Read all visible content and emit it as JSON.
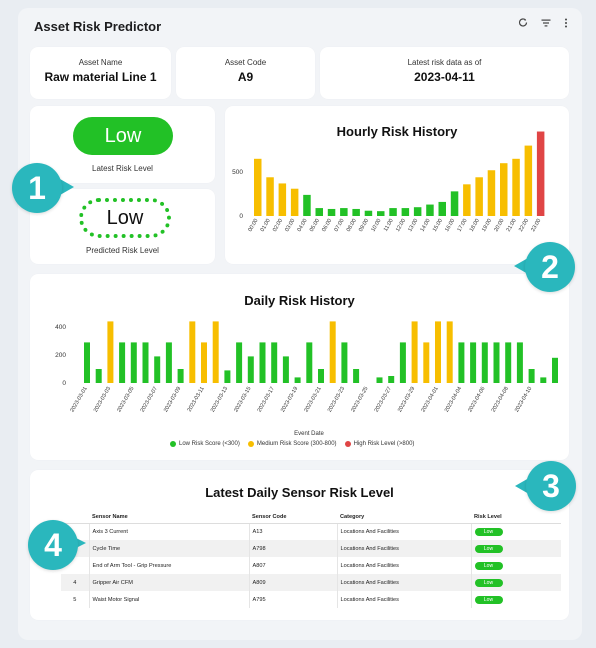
{
  "app": {
    "title": "Asset Risk Predictor"
  },
  "header_icons": [
    "refresh-icon",
    "filter-icon",
    "more-vertical-icon"
  ],
  "asset": {
    "name_label": "Asset Name",
    "name_value": "Raw material Line 1",
    "code_label": "Asset Code",
    "code_value": "A9",
    "date_label": "Latest risk data as of",
    "date_value": "2023-04-11"
  },
  "latest_risk": {
    "value": "Low",
    "label": "Latest Risk Level"
  },
  "predicted_risk": {
    "value": "Low",
    "label": "Predicted Risk Level"
  },
  "badges": [
    "1",
    "2",
    "3",
    "4"
  ],
  "colors": {
    "low": "#22c126",
    "medium": "#f7be00",
    "high": "#e04545",
    "badge": "#2ab7bd"
  },
  "hourly_chart": {
    "title": "Hourly Risk History",
    "y_ticks": [
      "0",
      "500"
    ],
    "ylim": [
      0,
      1000
    ],
    "categories": [
      "00:00",
      "01:00",
      "02:00",
      "03:00",
      "04:00",
      "05:00",
      "06:00",
      "07:00",
      "08:00",
      "09:00",
      "10:00",
      "11:00",
      "12:00",
      "13:00",
      "14:00",
      "15:00",
      "16:00",
      "17:00",
      "18:00",
      "19:00",
      "20:00",
      "21:00",
      "22:00",
      "23:00"
    ],
    "values": [
      650,
      440,
      370,
      310,
      240,
      90,
      80,
      90,
      80,
      60,
      55,
      90,
      90,
      100,
      130,
      160,
      280,
      360,
      440,
      520,
      600,
      650,
      800,
      960
    ],
    "levels": [
      "m",
      "m",
      "m",
      "m",
      "l",
      "l",
      "l",
      "l",
      "l",
      "l",
      "l",
      "l",
      "l",
      "l",
      "l",
      "l",
      "l",
      "m",
      "m",
      "m",
      "m",
      "m",
      "m",
      "h"
    ]
  },
  "daily_chart": {
    "title": "Daily Risk History",
    "xlabel": "Event Date",
    "y_ticks": [
      "0",
      "200",
      "400"
    ],
    "ylim": [
      0,
      450
    ],
    "tick_labels": [
      "2023-03-01",
      "2023-03-03",
      "2023-03-05",
      "2023-03-07",
      "2023-03-09",
      "2023-03-11",
      "2023-03-13",
      "2023-03-15",
      "2023-03-17",
      "2023-03-19",
      "2023-03-21",
      "2023-03-23",
      "2023-03-25",
      "2023-03-27",
      "2023-03-29",
      "2023-04-01",
      "2023-04-04",
      "2023-04-06",
      "2023-04-08",
      "2023-04-10"
    ],
    "values": [
      290,
      100,
      440,
      290,
      290,
      290,
      190,
      290,
      100,
      440,
      290,
      440,
      90,
      290,
      190,
      290,
      290,
      190,
      40,
      290,
      100,
      440,
      290,
      100,
      0,
      40,
      50,
      290,
      440,
      290,
      440,
      440,
      290,
      290,
      290,
      290,
      290,
      290,
      100,
      40,
      180
    ],
    "levels": [
      "l",
      "l",
      "m",
      "l",
      "l",
      "l",
      "l",
      "l",
      "l",
      "m",
      "m",
      "m",
      "l",
      "l",
      "l",
      "l",
      "l",
      "l",
      "l",
      "l",
      "l",
      "m",
      "l",
      "l",
      "l",
      "l",
      "l",
      "l",
      "m",
      "m",
      "m",
      "m",
      "l",
      "l",
      "l",
      "l",
      "l",
      "l",
      "l",
      "l",
      "l"
    ],
    "legend": [
      {
        "label": "Low Risk Score (<300)",
        "color": "#22c126"
      },
      {
        "label": "Medium Risk Score (300-800)",
        "color": "#f7be00"
      },
      {
        "label": "High Risk Level (>800)",
        "color": "#e04545"
      }
    ]
  },
  "sensor_table": {
    "title": "Latest Daily Sensor Risk Level",
    "columns": [
      "Sensor Name",
      "Sensor Code",
      "Category",
      "Risk Level"
    ],
    "rows": [
      {
        "index": "",
        "name": "Axis 3 Current",
        "code": "A13",
        "category": "Locations And Facilities",
        "risk": "Low"
      },
      {
        "index": "",
        "name": "Cycle Time",
        "code": "A798",
        "category": "Locations And Facilities",
        "risk": "Low"
      },
      {
        "index": "",
        "name": "End of Arm Tool - Grip Pressure",
        "code": "A807",
        "category": "Locations And Facilities",
        "risk": "Low"
      },
      {
        "index": "4",
        "name": "Gripper Air CFM",
        "code": "A809",
        "category": "Locations And Facilities",
        "risk": "Low"
      },
      {
        "index": "5",
        "name": "Waist Motor Signal",
        "code": "A795",
        "category": "Locations And Facilities",
        "risk": "Low"
      }
    ]
  }
}
